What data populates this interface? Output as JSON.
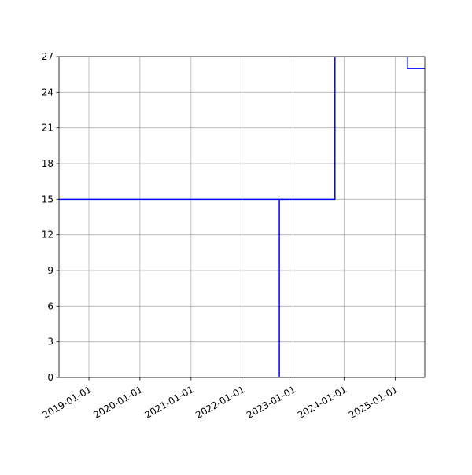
{
  "chart_data": {
    "type": "line",
    "step": true,
    "title": "",
    "xlabel": "",
    "ylabel": "",
    "x_axis_type": "date",
    "xlim": [
      "2018-06-01",
      "2025-08-01"
    ],
    "ylim": [
      0,
      27
    ],
    "grid": true,
    "legend": "none",
    "x_ticks": [
      "2019-01-01",
      "2020-01-01",
      "2021-01-01",
      "2022-01-01",
      "2023-01-01",
      "2024-01-01",
      "2025-01-01"
    ],
    "y_ticks": [
      "0",
      "3",
      "6",
      "9",
      "12",
      "15",
      "18",
      "21",
      "24",
      "27"
    ],
    "series": [
      {
        "color": "#0000ff",
        "points": [
          {
            "x": "2018-06-01",
            "y": 15
          },
          {
            "x": "2022-09-25",
            "y": 15
          },
          {
            "x": "2022-09-25",
            "y": 0
          }
        ]
      },
      {
        "color": "#0000ff",
        "points": [
          {
            "x": "2022-09-25",
            "y": 15
          },
          {
            "x": "2023-10-28",
            "y": 15
          },
          {
            "x": "2023-10-28",
            "y": 27
          }
        ]
      },
      {
        "color": "#0000ff",
        "points": [
          {
            "x": "2025-03-29",
            "y": 27
          },
          {
            "x": "2025-03-29",
            "y": 26
          },
          {
            "x": "2025-08-01",
            "y": 26
          }
        ]
      }
    ]
  }
}
